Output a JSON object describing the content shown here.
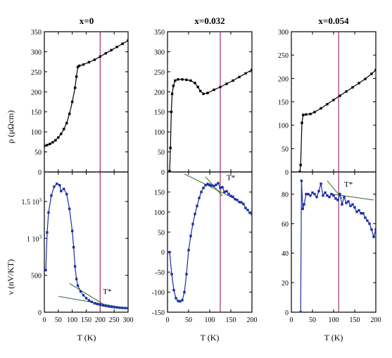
{
  "chart_data": [
    {
      "type": "line",
      "panel": "x=0 resistivity",
      "title": "x=0",
      "ylabel": "ρ (μΩcm)",
      "xlabel": "",
      "xlim": [
        0,
        300
      ],
      "ylim": [
        0,
        350
      ],
      "yticks": [
        "0",
        "50",
        "100",
        "150",
        "200",
        "250",
        "300",
        "350"
      ],
      "xticks": [],
      "marker_vline_x": 200,
      "series": [
        {
          "values": [
            [
              0,
              65
            ],
            [
              10,
              67
            ],
            [
              20,
              70
            ],
            [
              30,
              74
            ],
            [
              40,
              79
            ],
            [
              50,
              86
            ],
            [
              60,
              95
            ],
            [
              70,
              107
            ],
            [
              80,
              122
            ],
            [
              90,
              145
            ],
            [
              100,
              175
            ],
            [
              110,
              210
            ],
            [
              115,
              238
            ],
            [
              120,
              262
            ],
            [
              125,
              265
            ],
            [
              140,
              268
            ],
            [
              160,
              274
            ],
            [
              180,
              280
            ],
            [
              200,
              288
            ],
            [
              220,
              296
            ],
            [
              240,
              304
            ],
            [
              260,
              312
            ],
            [
              280,
              320
            ],
            [
              300,
              328
            ]
          ]
        }
      ]
    },
    {
      "type": "line",
      "panel": "x=0 Nernst",
      "ylabel": "ν (nV/KT)",
      "xlabel": "T (K)",
      "xlim": [
        0,
        300
      ],
      "ylim": [
        0,
        1900
      ],
      "yticks": [
        "0",
        "500",
        "1 10³",
        "1.5 10³"
      ],
      "xticks": [
        "0",
        "50",
        "100",
        "150",
        "200",
        "250",
        "300"
      ],
      "marker_vline_x": 200,
      "annotation": "T*",
      "series": [
        {
          "values": [
            [
              5,
              570
            ],
            [
              10,
              1080
            ],
            [
              15,
              1350
            ],
            [
              25,
              1580
            ],
            [
              35,
              1700
            ],
            [
              45,
              1740
            ],
            [
              55,
              1720
            ],
            [
              60,
              1640
            ],
            [
              70,
              1670
            ],
            [
              80,
              1600
            ],
            [
              90,
              1400
            ],
            [
              100,
              1100
            ],
            [
              105,
              880
            ],
            [
              110,
              620
            ],
            [
              115,
              450
            ],
            [
              120,
              360
            ],
            [
              130,
              280
            ],
            [
              140,
              230
            ],
            [
              150,
              190
            ],
            [
              160,
              160
            ],
            [
              170,
              140
            ],
            [
              180,
              120
            ],
            [
              190,
              110
            ],
            [
              200,
              100
            ],
            [
              210,
              92
            ],
            [
              220,
              85
            ],
            [
              230,
              78
            ],
            [
              240,
              72
            ],
            [
              250,
              68
            ],
            [
              260,
              64
            ],
            [
              270,
              60
            ],
            [
              280,
              58
            ],
            [
              290,
              56
            ],
            [
              300,
              55
            ]
          ]
        }
      ],
      "tangent_lines": [
        [
          [
            90,
            390
          ],
          [
            215,
            100
          ]
        ],
        [
          [
            50,
            215
          ],
          [
            300,
            50
          ]
        ]
      ]
    },
    {
      "type": "line",
      "panel": "x=0.032 resistivity",
      "title": "x=0.032",
      "xlim": [
        0,
        200
      ],
      "ylim": [
        0,
        350
      ],
      "yticks": [
        "0",
        "50",
        "100",
        "150",
        "200",
        "250",
        "300",
        "350"
      ],
      "xticks": [],
      "marker_vline_x": 125,
      "series": [
        {
          "values": [
            [
              5,
              2
            ],
            [
              7,
              60
            ],
            [
              9,
              150
            ],
            [
              11,
              195
            ],
            [
              14,
              215
            ],
            [
              18,
              228
            ],
            [
              25,
              231
            ],
            [
              35,
              231
            ],
            [
              45,
              230
            ],
            [
              55,
              228
            ],
            [
              65,
              222
            ],
            [
              72,
              212
            ],
            [
              78,
              202
            ],
            [
              85,
              195
            ],
            [
              95,
              197
            ],
            [
              110,
              205
            ],
            [
              125,
              212
            ],
            [
              140,
              220
            ],
            [
              155,
              228
            ],
            [
              170,
              237
            ],
            [
              185,
              246
            ],
            [
              200,
              255
            ]
          ]
        }
      ]
    },
    {
      "type": "line",
      "panel": "x=0.032 Nernst",
      "xlabel": "T (K)",
      "xlim": [
        0,
        200
      ],
      "ylim": [
        -150,
        200
      ],
      "yticks": [
        "-150",
        "-100",
        "-50",
        "0",
        "50",
        "100",
        "150"
      ],
      "xticks": [
        "0",
        "50",
        "100",
        "150",
        "200"
      ],
      "marker_vline_x": 125,
      "annotation": "T*",
      "series": [
        {
          "values": [
            [
              5,
              0
            ],
            [
              10,
              -55
            ],
            [
              15,
              -95
            ],
            [
              20,
              -115
            ],
            [
              25,
              -122
            ],
            [
              30,
              -123
            ],
            [
              35,
              -120
            ],
            [
              40,
              -100
            ],
            [
              45,
              -55
            ],
            [
              50,
              5
            ],
            [
              55,
              40
            ],
            [
              60,
              70
            ],
            [
              65,
              95
            ],
            [
              70,
              115
            ],
            [
              75,
              135
            ],
            [
              80,
              150
            ],
            [
              85,
              160
            ],
            [
              90,
              167
            ],
            [
              95,
              170
            ],
            [
              100,
              168
            ],
            [
              105,
              166
            ],
            [
              110,
              165
            ],
            [
              115,
              168
            ],
            [
              120,
              172
            ],
            [
              125,
              160
            ],
            [
              130,
              162
            ],
            [
              135,
              150
            ],
            [
              140,
              152
            ],
            [
              145,
              145
            ],
            [
              150,
              140
            ],
            [
              155,
              138
            ],
            [
              160,
              132
            ],
            [
              165,
              130
            ],
            [
              170,
              125
            ],
            [
              175,
              124
            ],
            [
              180,
              120
            ],
            [
              185,
              110
            ],
            [
              190,
              105
            ],
            [
              195,
              98
            ],
            [
              200,
              95
            ]
          ]
        }
      ],
      "tangent_lines": [
        [
          [
            40,
            195
          ],
          [
            165,
            130
          ]
        ],
        [
          [
            90,
            188
          ],
          [
            130,
            140
          ]
        ]
      ]
    },
    {
      "type": "line",
      "panel": "x=0.054 resistivity",
      "title": "x=0.054",
      "xlim": [
        0,
        200
      ],
      "ylim": [
        0,
        300
      ],
      "yticks": [
        "0",
        "50",
        "100",
        "150",
        "200",
        "250",
        "300"
      ],
      "xticks": [],
      "marker_vline_x": 112,
      "series": [
        {
          "values": [
            [
              20,
              0
            ],
            [
              22,
              15
            ],
            [
              25,
              105
            ],
            [
              28,
              122
            ],
            [
              35,
              123
            ],
            [
              45,
              124
            ],
            [
              55,
              128
            ],
            [
              70,
              136
            ],
            [
              85,
              145
            ],
            [
              100,
              154
            ],
            [
              115,
              163
            ],
            [
              130,
              172
            ],
            [
              145,
              181
            ],
            [
              160,
              190
            ],
            [
              175,
              199
            ],
            [
              190,
              210
            ],
            [
              200,
              218
            ]
          ]
        }
      ]
    },
    {
      "type": "line",
      "panel": "x=0.054 Nernst",
      "xlabel": "T (K)",
      "xlim": [
        0,
        200
      ],
      "ylim": [
        0,
        95
      ],
      "yticks": [
        "0",
        "20",
        "40",
        "60",
        "80"
      ],
      "xticks": [
        "0",
        "50",
        "100",
        "150",
        "200"
      ],
      "marker_vline_x": 112,
      "annotation": "T*",
      "series": [
        {
          "values": [
            [
              22,
              0
            ],
            [
              24,
              89
            ],
            [
              27,
              70
            ],
            [
              30,
              73
            ],
            [
              35,
              80
            ],
            [
              40,
              80
            ],
            [
              45,
              79
            ],
            [
              50,
              81
            ],
            [
              55,
              80
            ],
            [
              60,
              78
            ],
            [
              65,
              82
            ],
            [
              70,
              87
            ],
            [
              75,
              79
            ],
            [
              80,
              81
            ],
            [
              85,
              79
            ],
            [
              90,
              78
            ],
            [
              95,
              80
            ],
            [
              100,
              79
            ],
            [
              105,
              77
            ],
            [
              110,
              76
            ],
            [
              115,
              80
            ],
            [
              120,
              73
            ],
            [
              125,
              78
            ],
            [
              130,
              74
            ],
            [
              135,
              75
            ],
            [
              140,
              72
            ],
            [
              145,
              73
            ],
            [
              150,
              71
            ],
            [
              155,
              68
            ],
            [
              160,
              69
            ],
            [
              165,
              67
            ],
            [
              170,
              67
            ],
            [
              175,
              64
            ],
            [
              180,
              62
            ],
            [
              185,
              60
            ],
            [
              190,
              56
            ],
            [
              195,
              51
            ],
            [
              200,
              56
            ]
          ]
        }
      ],
      "tangent_lines": [
        [
          [
            95,
            80
          ],
          [
            195,
            76
          ]
        ],
        [
          [
            85,
            89
          ],
          [
            120,
            77
          ]
        ]
      ]
    }
  ]
}
